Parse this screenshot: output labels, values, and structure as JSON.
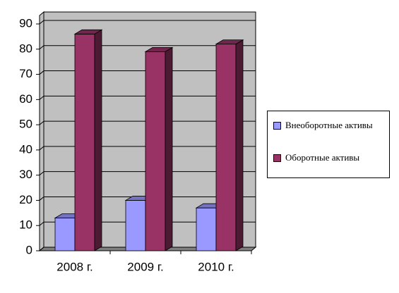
{
  "chart_data": {
    "type": "bar3d",
    "categories": [
      "2008 г.",
      "2009 г.",
      "2010 г."
    ],
    "series": [
      {
        "name": "Внеоборотные активы",
        "color": "#9999ff",
        "values": [
          13,
          20,
          17
        ]
      },
      {
        "name": "Оборотные активы",
        "color": "#993366",
        "values": [
          86,
          79,
          82
        ]
      }
    ],
    "ylim": [
      0,
      90
    ],
    "yticks": [
      0,
      10,
      20,
      30,
      40,
      50,
      60,
      70,
      80,
      90
    ],
    "grid": true,
    "legend": "right"
  }
}
